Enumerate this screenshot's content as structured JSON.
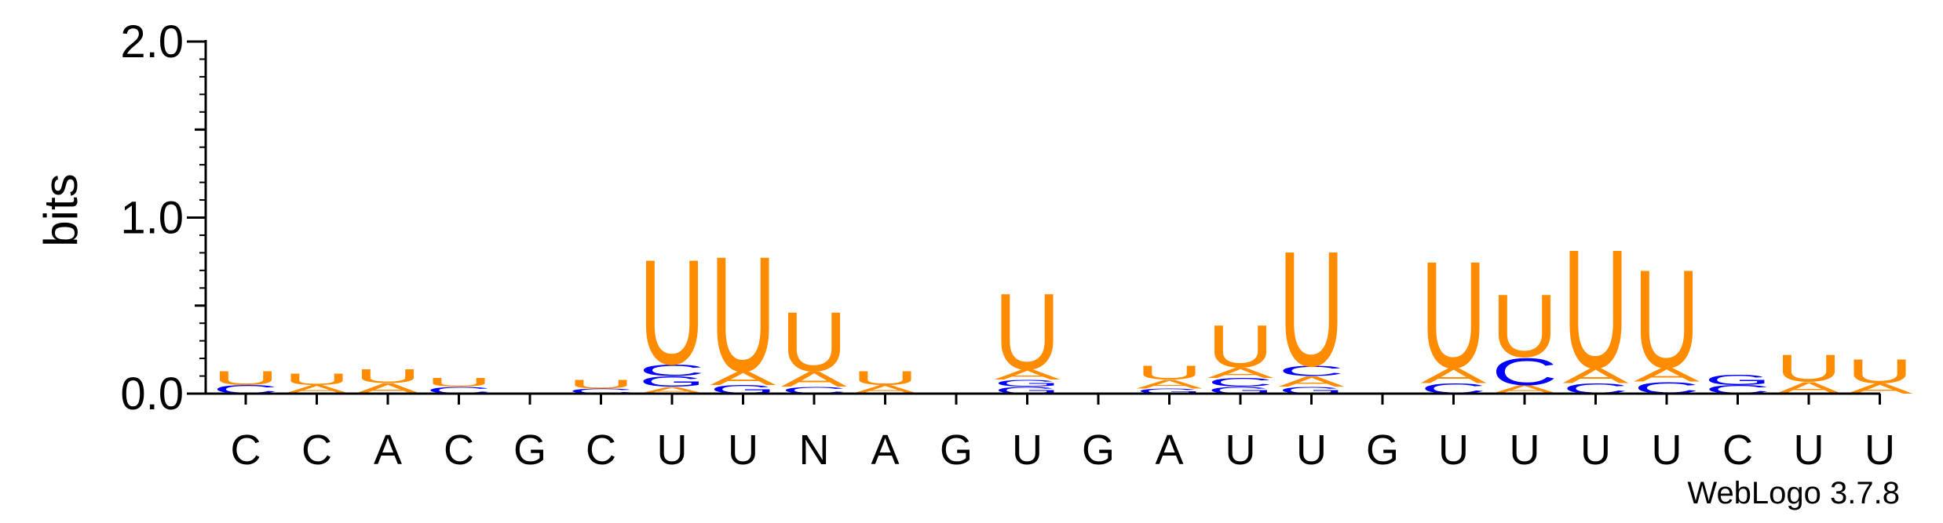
{
  "chart_data": {
    "type": "sequence-logo",
    "ylabel": "bits",
    "ylim": [
      0,
      2.0
    ],
    "yticks": [
      "0.0",
      "1.0",
      "2.0"
    ],
    "credit": "WebLogo 3.7.8",
    "colors": {
      "U": "#FF8C00",
      "A": "#FF8C00",
      "C": "#0000FF",
      "G": "#0000FF"
    },
    "positions": [
      {
        "label": "C",
        "stack": [
          {
            "letter": "C",
            "bits": 0.05
          },
          {
            "letter": "U",
            "bits": 0.08
          }
        ]
      },
      {
        "label": "C",
        "stack": [
          {
            "letter": "A",
            "bits": 0.05
          },
          {
            "letter": "U",
            "bits": 0.07
          }
        ]
      },
      {
        "label": "A",
        "stack": [
          {
            "letter": "A",
            "bits": 0.06
          },
          {
            "letter": "U",
            "bits": 0.08
          }
        ]
      },
      {
        "label": "C",
        "stack": [
          {
            "letter": "C",
            "bits": 0.04
          },
          {
            "letter": "U",
            "bits": 0.05
          }
        ]
      },
      {
        "label": "G",
        "stack": []
      },
      {
        "label": "C",
        "stack": [
          {
            "letter": "C",
            "bits": 0.03
          },
          {
            "letter": "U",
            "bits": 0.05
          }
        ]
      },
      {
        "label": "U",
        "stack": [
          {
            "letter": "A",
            "bits": 0.04
          },
          {
            "letter": "G",
            "bits": 0.06
          },
          {
            "letter": "C",
            "bits": 0.07
          },
          {
            "letter": "U",
            "bits": 0.62
          }
        ]
      },
      {
        "label": "U",
        "stack": [
          {
            "letter": "G",
            "bits": 0.05
          },
          {
            "letter": "A",
            "bits": 0.08
          },
          {
            "letter": "U",
            "bits": 0.68
          }
        ]
      },
      {
        "label": "N",
        "stack": [
          {
            "letter": "C",
            "bits": 0.04
          },
          {
            "letter": "A",
            "bits": 0.09
          },
          {
            "letter": "U",
            "bits": 0.35
          }
        ]
      },
      {
        "label": "A",
        "stack": [
          {
            "letter": "A",
            "bits": 0.05
          },
          {
            "letter": "U",
            "bits": 0.08
          }
        ]
      },
      {
        "label": "G",
        "stack": []
      },
      {
        "label": "U",
        "stack": [
          {
            "letter": "G",
            "bits": 0.04
          },
          {
            "letter": "G",
            "bits": 0.04
          },
          {
            "letter": "A",
            "bits": 0.06
          },
          {
            "letter": "U",
            "bits": 0.45
          }
        ]
      },
      {
        "label": "G",
        "stack": []
      },
      {
        "label": "A",
        "stack": [
          {
            "letter": "G",
            "bits": 0.03
          },
          {
            "letter": "A",
            "bits": 0.05
          },
          {
            "letter": "U",
            "bits": 0.08
          }
        ]
      },
      {
        "label": "U",
        "stack": [
          {
            "letter": "G",
            "bits": 0.04
          },
          {
            "letter": "C",
            "bits": 0.05
          },
          {
            "letter": "A",
            "bits": 0.06
          },
          {
            "letter": "U",
            "bits": 0.25
          }
        ]
      },
      {
        "label": "U",
        "stack": [
          {
            "letter": "G",
            "bits": 0.04
          },
          {
            "letter": "A",
            "bits": 0.06
          },
          {
            "letter": "C",
            "bits": 0.06
          },
          {
            "letter": "U",
            "bits": 0.68
          }
        ]
      },
      {
        "label": "G",
        "stack": []
      },
      {
        "label": "U",
        "stack": [
          {
            "letter": "C",
            "bits": 0.06
          },
          {
            "letter": "A",
            "bits": 0.09
          },
          {
            "letter": "U",
            "bits": 0.63
          }
        ]
      },
      {
        "label": "U",
        "stack": [
          {
            "letter": "A",
            "bits": 0.05
          },
          {
            "letter": "C",
            "bits": 0.16
          },
          {
            "letter": "U",
            "bits": 0.37
          }
        ]
      },
      {
        "label": "U",
        "stack": [
          {
            "letter": "C",
            "bits": 0.06
          },
          {
            "letter": "A",
            "bits": 0.09
          },
          {
            "letter": "U",
            "bits": 0.7
          }
        ]
      },
      {
        "label": "U",
        "stack": [
          {
            "letter": "C",
            "bits": 0.07
          },
          {
            "letter": "A",
            "bits": 0.08
          },
          {
            "letter": "U",
            "bits": 0.58
          }
        ]
      },
      {
        "label": "C",
        "stack": [
          {
            "letter": "C",
            "bits": 0.05
          },
          {
            "letter": "G",
            "bits": 0.06
          }
        ]
      },
      {
        "label": "U",
        "stack": [
          {
            "letter": "A",
            "bits": 0.07
          },
          {
            "letter": "U",
            "bits": 0.16
          }
        ]
      },
      {
        "label": "U",
        "stack": [
          {
            "letter": "A",
            "bits": 0.06
          },
          {
            "letter": "U",
            "bits": 0.14
          }
        ]
      }
    ]
  }
}
